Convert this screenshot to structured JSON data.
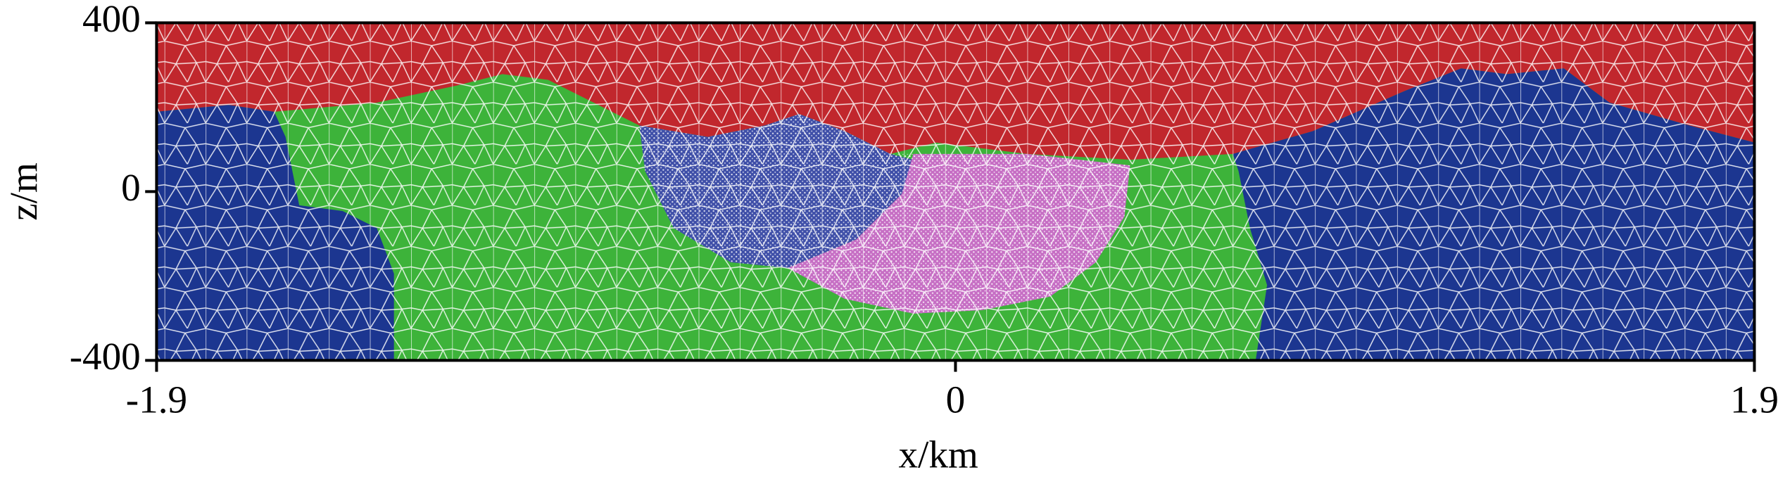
{
  "chart_data": {
    "type": "mesh",
    "xlabel": "x/km",
    "ylabel": "z/m",
    "xlim": [
      -1.9,
      1.9
    ],
    "xticks": [
      -1.9,
      0,
      1.9
    ],
    "ylim": [
      -400,
      400
    ],
    "yticks": [
      -400,
      0,
      400
    ]
  }
}
